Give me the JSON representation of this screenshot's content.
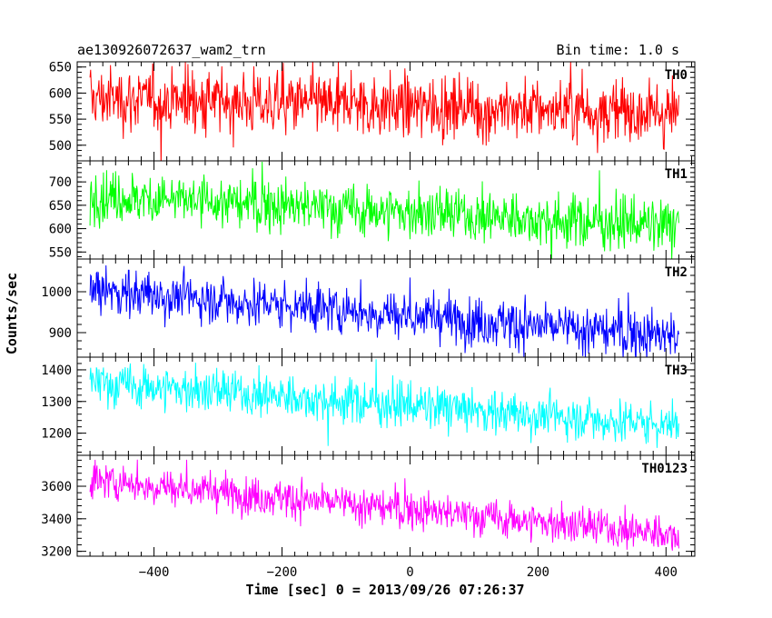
{
  "chart_data": {
    "type": "line",
    "title": "ae130926072637_wam2_trn",
    "subtitle": "Bin time: 1.0 s",
    "xlabel": "Time [sec] 0 = 2013/09/26 07:26:37",
    "ylabel": "Counts/sec",
    "xlim": [
      -520,
      445
    ],
    "x_range": [
      -500,
      420
    ],
    "x_ticks": [
      -400,
      -200,
      0,
      200,
      400
    ],
    "x_tick_labels": [
      "−400",
      "−200",
      "0",
      "200",
      "400"
    ],
    "grid": false,
    "series": [
      {
        "name": "TH0",
        "color": "#ff0000",
        "ylim": [
          470,
          660
        ],
        "y_ticks": [
          500,
          550,
          600,
          650
        ],
        "y_tick_labels": [
          "500",
          "550",
          "600",
          "650"
        ],
        "start": 590,
        "end": 562,
        "noise": 30
      },
      {
        "name": "TH1",
        "color": "#00ff00",
        "ylim": [
          535,
          745
        ],
        "y_ticks": [
          550,
          600,
          650,
          700
        ],
        "y_tick_labels": [
          "550",
          "600",
          "650",
          "700"
        ],
        "start": 670,
        "end": 605,
        "noise": 28
      },
      {
        "name": "TH2",
        "color": "#0000ff",
        "ylim": [
          840,
          1080
        ],
        "y_ticks": [
          900,
          1000
        ],
        "y_tick_labels": [
          "900",
          "1000"
        ],
        "start": 1005,
        "end": 890,
        "noise": 30
      },
      {
        "name": "TH3",
        "color": "#00ffff",
        "ylim": [
          1130,
          1440
        ],
        "y_ticks": [
          1200,
          1300,
          1400
        ],
        "y_tick_labels": [
          "1200",
          "1300",
          "1400"
        ],
        "start": 1360,
        "end": 1225,
        "noise": 35
      },
      {
        "name": "TH0123",
        "color": "#ff00ff",
        "ylim": [
          3170,
          3790
        ],
        "y_ticks": [
          3200,
          3400,
          3600
        ],
        "y_tick_labels": [
          "3200",
          "3400",
          "3600"
        ],
        "start": 3640,
        "end": 3300,
        "noise": 58
      }
    ]
  }
}
